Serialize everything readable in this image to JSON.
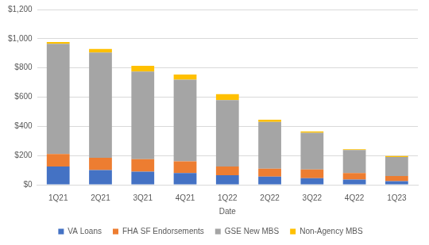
{
  "chart_data": {
    "type": "bar",
    "stacked": true,
    "grid": true,
    "legend": "bottom",
    "x_label": "Date",
    "categories": [
      "1Q21",
      "2Q21",
      "3Q21",
      "4Q21",
      "1Q22",
      "2Q22",
      "3Q22",
      "4Q22",
      "1Q23"
    ],
    "series": [
      {
        "name": "VA Loans",
        "color": "#4472c4",
        "values": [
          125,
          100,
          90,
          80,
          65,
          55,
          45,
          35,
          25
        ]
      },
      {
        "name": "FHA SF Endorsements",
        "color": "#ed7d31",
        "values": [
          85,
          85,
          85,
          80,
          60,
          55,
          60,
          45,
          35
        ]
      },
      {
        "name": "GSE New MBS",
        "color": "#a5a5a5",
        "values": [
          755,
          720,
          600,
          560,
          455,
          320,
          250,
          158,
          130
        ]
      },
      {
        "name": "Non-Agency MBS",
        "color": "#ffc000",
        "values": [
          13,
          25,
          40,
          35,
          40,
          15,
          10,
          5,
          7
        ]
      }
    ],
    "ylim": [
      0,
      1200
    ],
    "yticks": [
      {
        "value": 0,
        "label": "$0"
      },
      {
        "value": 200,
        "label": "$200"
      },
      {
        "value": 400,
        "label": "$400"
      },
      {
        "value": 600,
        "label": "$600"
      },
      {
        "value": 800,
        "label": "$800"
      },
      {
        "value": 1000,
        "label": "$1,000"
      },
      {
        "value": 1200,
        "label": "$1,200"
      }
    ]
  }
}
